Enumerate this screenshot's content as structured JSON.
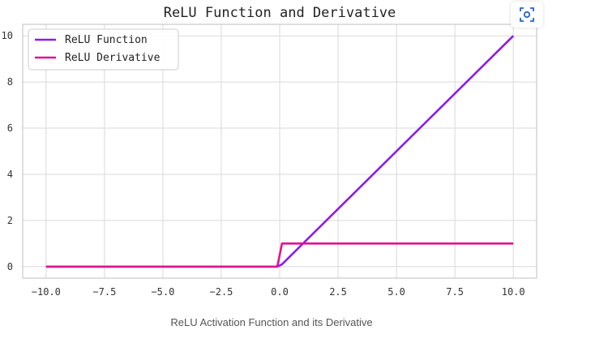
{
  "chart_data": {
    "type": "line",
    "title": "ReLU Function and Derivative",
    "xlabel": "",
    "ylabel": "",
    "xlim": [
      -11,
      11
    ],
    "ylim": [
      -0.5,
      10.5
    ],
    "grid": true,
    "legend_position": "top-left",
    "xticks": [
      -10.0,
      -7.5,
      -5.0,
      -2.5,
      0.0,
      2.5,
      5.0,
      7.5,
      10.0
    ],
    "xtick_labels": [
      "−10.0",
      "−7.5",
      "−5.0",
      "−2.5",
      "0.0",
      "2.5",
      "5.0",
      "7.5",
      "10.0"
    ],
    "yticks": [
      0,
      2,
      4,
      6,
      8,
      10
    ],
    "ytick_labels": [
      "0",
      "2",
      "4",
      "6",
      "8",
      "10"
    ],
    "series": [
      {
        "name": "ReLU Function",
        "color": "#8a1de8",
        "x": [
          -10,
          -0.1,
          0.1,
          10
        ],
        "y": [
          0,
          0,
          0.1,
          10
        ]
      },
      {
        "name": "ReLU Derivative",
        "color": "#e01390",
        "x": [
          -10,
          -0.1,
          0.1,
          10
        ],
        "y": [
          0,
          0,
          1,
          1
        ]
      }
    ]
  },
  "caption": "ReLU Activation Function and its Derivative",
  "lens_button": {
    "icon": "lens-icon"
  }
}
